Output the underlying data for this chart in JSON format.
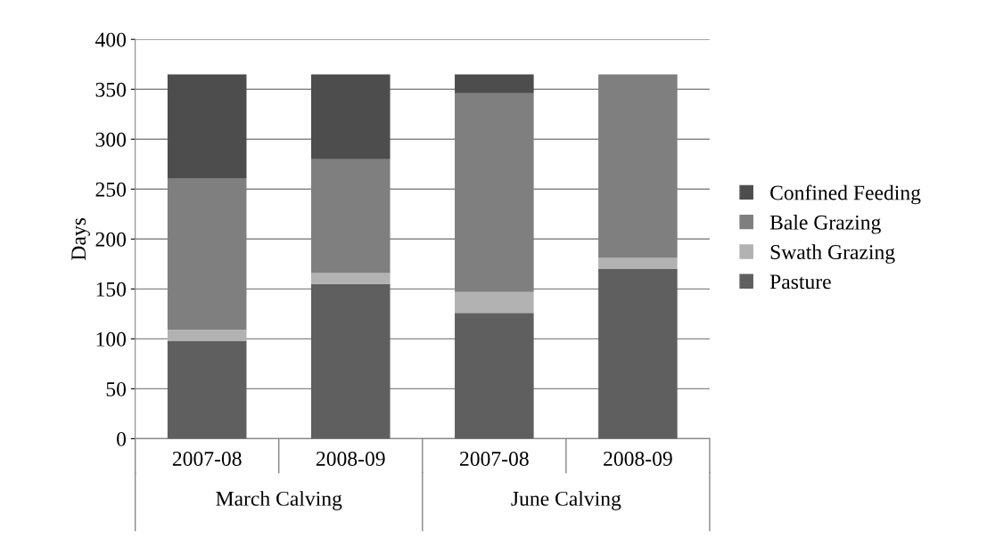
{
  "chart_data": {
    "type": "bar",
    "stacked": true,
    "ylabel": "Days",
    "categories": [
      "2007-08",
      "2008-09",
      "2007-08",
      "2008-09"
    ],
    "series": [
      {
        "name": "Pasture",
        "color": "#5f5f5f",
        "values": [
          98,
          155,
          126,
          170
        ]
      },
      {
        "name": "Swath Grazing",
        "color": "#b2b2b2",
        "values": [
          11,
          11,
          21,
          11
        ]
      },
      {
        "name": "Bale Grazing",
        "color": "#7f7f7f",
        "values": [
          152,
          114,
          199,
          184
        ]
      },
      {
        "name": "Confined Feeding",
        "color": "#4d4d4d",
        "values": [
          104,
          85,
          19,
          0
        ]
      }
    ],
    "annotations": [
      "March Calving",
      "June Calving"
    ],
    "ylim": [
      0,
      400
    ],
    "yticks": [
      0,
      50,
      100,
      150,
      200,
      250,
      300,
      350,
      400
    ],
    "grid": "y",
    "legend": "right"
  }
}
